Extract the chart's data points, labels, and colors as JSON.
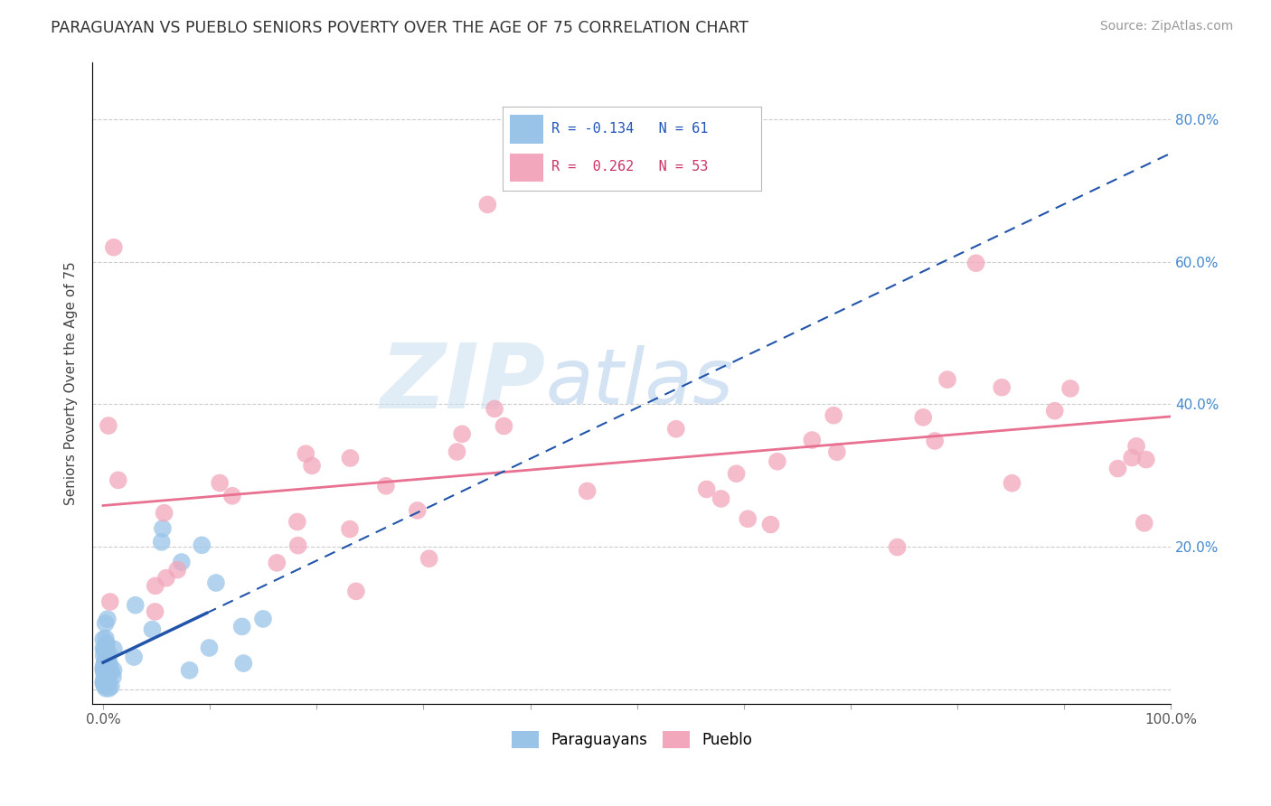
{
  "title": "PARAGUAYAN VS PUEBLO SENIORS POVERTY OVER THE AGE OF 75 CORRELATION CHART",
  "source": "Source: ZipAtlas.com",
  "ylabel": "Seniors Poverty Over the Age of 75",
  "xlim": [
    -0.01,
    1.0
  ],
  "ylim": [
    -0.02,
    0.88
  ],
  "yticks": [
    0.0,
    0.2,
    0.4,
    0.6,
    0.8
  ],
  "yticklabels_right": [
    "",
    "20.0%",
    "40.0%",
    "60.0%",
    "80.0%"
  ],
  "xtick_left_label": "0.0%",
  "xtick_right_label": "100.0%",
  "blue_color": "#99c4e8",
  "pink_color": "#f2a7bc",
  "blue_line_color": "#2255aa",
  "pink_line_color": "#e87090",
  "watermark_zip": "ZIP",
  "watermark_atlas": "atlas",
  "background_color": "#ffffff",
  "grid_color": "#cccccc",
  "right_tick_color": "#4488cc",
  "legend_blue_r": "R = -0.134",
  "legend_blue_n": "N = 61",
  "legend_pink_r": "R =  0.262",
  "legend_pink_n": "N = 53",
  "par_seed": 77,
  "pue_seed": 42
}
